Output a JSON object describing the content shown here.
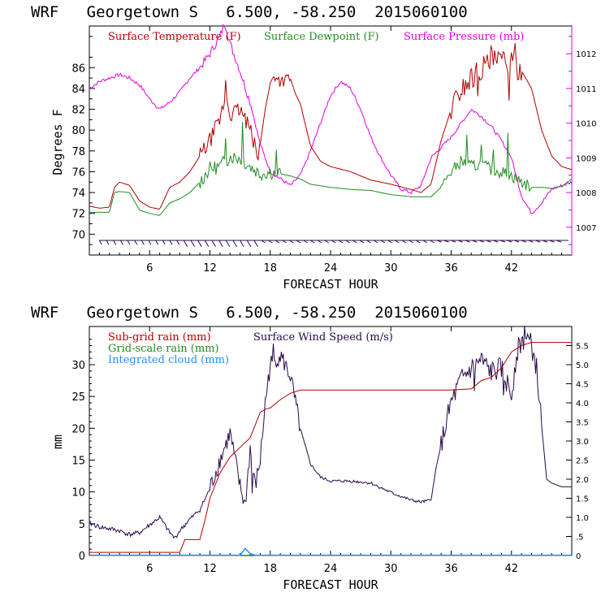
{
  "colors": {
    "temperature": "#b00000",
    "dewpoint": "#228b22",
    "pressure": "#e000e0",
    "wind": "#2a0a4a",
    "subgrid": "#b00000",
    "gridscale": "#228b22",
    "cloud": "#1e90ff"
  },
  "chart_data": [
    {
      "type": "line",
      "title": "WRF   Georgetown S   6.500, -58.250  2015060100",
      "xlabel": "FORECAST HOUR",
      "ylabel": "Degrees F",
      "xlim": [
        0,
        48
      ],
      "ylim": [
        68,
        90
      ],
      "y2lim": [
        1006.2,
        1012.8
      ],
      "xticks": [
        "6",
        "12",
        "18",
        "24",
        "30",
        "36",
        "42"
      ],
      "yticks": [
        "70",
        "72",
        "74",
        "76",
        "78",
        "80",
        "82",
        "84",
        "86"
      ],
      "y2ticks": [
        "1007",
        "1008",
        "1009",
        "1010",
        "1011",
        "1012"
      ],
      "series": [
        {
          "name": "Surface Temperature (F)",
          "x": [
            0,
            1,
            2,
            2.5,
            3,
            4,
            5,
            6,
            7,
            8,
            9,
            10,
            11,
            12,
            13,
            13.6,
            14,
            15,
            16,
            16.8,
            17.5,
            18,
            18.5,
            19,
            20,
            20.5,
            21,
            22,
            23,
            24,
            26,
            28,
            30,
            32,
            33,
            34,
            35,
            36,
            37,
            38,
            39,
            40,
            41,
            42,
            43,
            44,
            45,
            46,
            47,
            48
          ],
          "values": [
            72.7,
            72.5,
            72.6,
            74.5,
            75,
            74.7,
            73.2,
            72.6,
            72.4,
            74.5,
            75,
            76,
            77.5,
            79,
            81,
            83.5,
            81.5,
            82,
            80,
            77.3,
            82,
            84.5,
            85.3,
            84.7,
            85,
            83.5,
            82.5,
            78.5,
            77,
            76.5,
            76,
            75.2,
            74.8,
            74.3,
            74,
            74.8,
            79,
            82,
            84,
            85,
            86,
            86.5,
            86.7,
            86.3,
            85.7,
            84,
            80,
            77.5,
            76.5,
            76.2
          ]
        },
        {
          "name": "Surface Dewpoint (F)",
          "x": [
            0,
            1,
            2,
            2.5,
            3,
            4,
            5,
            6,
            7,
            8,
            9,
            10,
            11,
            12,
            13,
            14,
            15,
            16,
            17,
            18,
            19,
            20,
            21,
            22,
            24,
            26,
            28,
            30,
            32,
            34,
            35,
            36,
            37,
            38,
            39,
            40,
            41,
            42,
            43,
            44,
            45,
            46,
            47,
            48
          ],
          "values": [
            72.1,
            72.1,
            72.1,
            74,
            74.1,
            74,
            72.3,
            72,
            71.8,
            73,
            73.4,
            74,
            75,
            76.3,
            76.5,
            77.5,
            77.3,
            76.5,
            75.8,
            76,
            75.8,
            75.6,
            75.3,
            74.8,
            74.5,
            74.3,
            74.2,
            73.8,
            73.6,
            73.6,
            74.5,
            76,
            77,
            76.5,
            76.7,
            76.2,
            76,
            75.6,
            75,
            74.5,
            74.5,
            74.4,
            74.6,
            75.3
          ]
        },
        {
          "name": "Surface Pressure (mb)",
          "x": [
            0,
            1,
            2,
            3,
            4,
            5,
            6,
            7,
            8,
            9,
            10,
            11,
            12,
            13,
            13.5,
            14,
            15,
            16,
            17,
            18,
            19,
            20,
            21,
            22,
            23,
            24,
            25,
            26,
            27,
            28,
            29,
            30,
            31,
            32,
            33,
            34,
            35,
            36,
            37,
            38,
            39,
            40,
            41,
            42,
            43,
            44,
            45,
            46,
            47,
            48
          ],
          "values": [
            1011.0,
            1011.2,
            1011.3,
            1011.4,
            1011.3,
            1011.1,
            1010.7,
            1010.4,
            1010.6,
            1010.9,
            1011.3,
            1011.6,
            1012.0,
            1012.5,
            1012.9,
            1012.3,
            1011.5,
            1010.6,
            1009.4,
            1008.6,
            1008.4,
            1008.2,
            1008.5,
            1009.2,
            1010.0,
            1010.8,
            1011.2,
            1011.0,
            1010.4,
            1009.6,
            1009.0,
            1008.5,
            1008.1,
            1008.0,
            1008.2,
            1009.0,
            1009.3,
            1009.6,
            1010.0,
            1010.4,
            1010.2,
            1009.9,
            1009.5,
            1009.0,
            1007.9,
            1007.4,
            1007.7,
            1008.1,
            1008.2,
            1008.3
          ]
        }
      ]
    },
    {
      "type": "line",
      "title": "WRF   Georgetown S   6.500, -58.250  2015060100",
      "xlabel": "FORECAST HOUR",
      "ylabel": "mm",
      "xlim": [
        0,
        48
      ],
      "ylim": [
        0,
        36
      ],
      "y2lim": [
        0,
        6
      ],
      "xticks": [
        "6",
        "12",
        "18",
        "24",
        "30",
        "36",
        "42"
      ],
      "yticks": [
        "0",
        "5",
        "10",
        "15",
        "20",
        "25",
        "30"
      ],
      "y2ticks": [
        "0",
        ".5",
        "1.0",
        "1.5",
        "2.0",
        "2.5",
        "3.0",
        "3.5",
        "4.0",
        "4.5",
        "5.0",
        "5.5"
      ],
      "series": [
        {
          "name": "Sub-grid rain (mm)",
          "x": [
            0,
            9,
            9.5,
            11,
            11.5,
            12,
            13,
            14,
            15,
            16,
            17,
            17.5,
            18,
            19,
            20,
            21,
            22,
            24,
            30,
            36,
            38,
            39,
            40,
            41,
            42,
            43,
            44,
            45,
            46,
            48
          ],
          "values": [
            0.5,
            0.5,
            2.5,
            2.5,
            5.5,
            9,
            13,
            15.5,
            17,
            18.5,
            22.5,
            23,
            23.2,
            24.5,
            25.5,
            26,
            26,
            26,
            26,
            26,
            26.2,
            27.5,
            28,
            29.5,
            32,
            33,
            33.5,
            33.5,
            33.5,
            33.5
          ]
        },
        {
          "name": "Grid-scale rain (mm)",
          "x": [
            0,
            48
          ],
          "values": [
            0.05,
            0.05
          ]
        },
        {
          "name": "Integrated cloud (mm)",
          "x": [
            0,
            15,
            15.5,
            16,
            16.5,
            48
          ],
          "values": [
            0.05,
            0.05,
            1.1,
            0.3,
            0.05,
            0.05
          ]
        },
        {
          "name": "Surface Wind Speed (m/s)",
          "x": [
            0,
            1,
            2,
            3,
            4,
            5,
            6,
            7,
            8,
            8.5,
            9,
            10,
            11,
            12,
            13,
            14,
            15,
            15.5,
            16,
            16.5,
            17,
            17.5,
            18,
            19,
            20,
            21,
            22,
            23,
            24,
            26,
            28,
            30,
            32,
            33,
            34,
            34.5,
            35,
            36,
            37,
            38,
            39,
            40,
            41,
            42,
            42.5,
            43,
            43.5,
            44,
            44.5,
            45,
            45.5,
            46,
            47,
            48
          ],
          "values": [
            0.85,
            0.75,
            0.7,
            0.65,
            0.55,
            0.6,
            0.8,
            1.0,
            0.6,
            0.45,
            0.65,
            0.95,
            1.2,
            1.75,
            2.5,
            3.2,
            1.8,
            1.3,
            2.8,
            1.8,
            2.5,
            4.0,
            5.0,
            5.25,
            4.7,
            3.3,
            2.4,
            2.05,
            1.95,
            1.95,
            1.9,
            1.65,
            1.45,
            1.4,
            1.45,
            2.3,
            2.9,
            4.0,
            4.6,
            4.9,
            5.1,
            4.8,
            4.9,
            4.2,
            5.3,
            5.6,
            5.7,
            5.5,
            4.9,
            3.4,
            2.0,
            1.9,
            1.8,
            1.8
          ]
        }
      ]
    }
  ]
}
